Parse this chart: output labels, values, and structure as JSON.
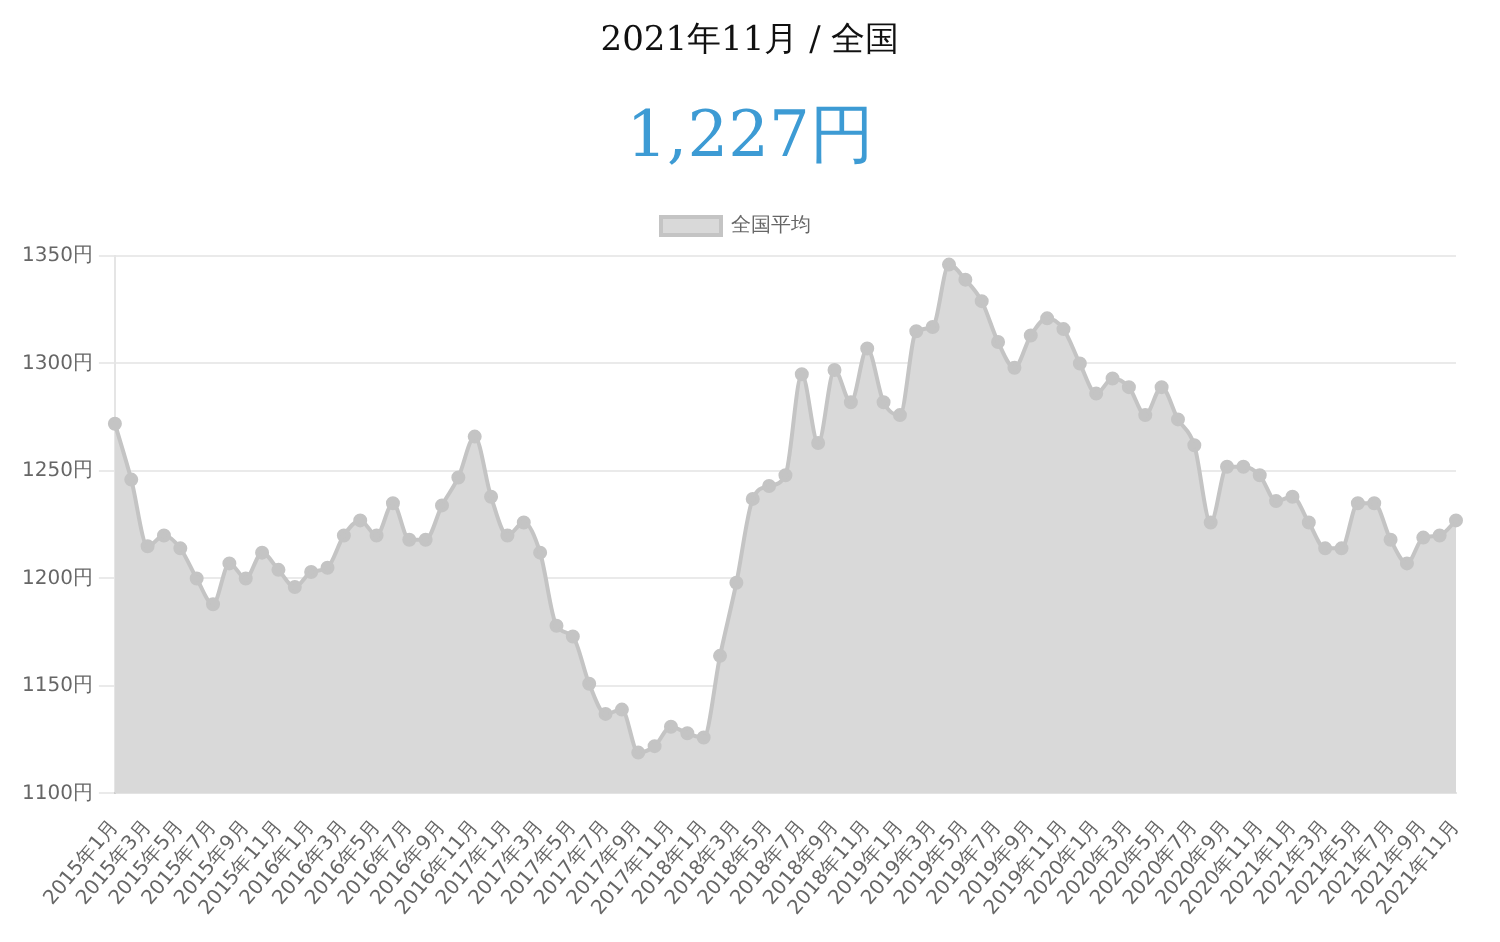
{
  "chart_data": {
    "type": "area",
    "title": "2021年11月 / 全国",
    "subtitle": "1,227円",
    "categories": [
      "2015年1月",
      null,
      "2015年3月",
      null,
      "2015年5月",
      null,
      "2015年7月",
      null,
      "2015年9月",
      null,
      "2015年11月",
      null,
      "2016年1月",
      null,
      "2016年3月",
      null,
      "2016年5月",
      null,
      "2016年7月",
      null,
      "2016年9月",
      null,
      "2016年11月",
      null,
      "2017年1月",
      null,
      "2017年3月",
      null,
      "2017年5月",
      null,
      "2017年7月",
      null,
      "2017年9月",
      null,
      "2017年11月",
      null,
      "2018年1月",
      null,
      "2018年3月",
      null,
      "2018年5月",
      null,
      "2018年7月",
      null,
      "2018年9月",
      null,
      "2018年11月",
      null,
      "2019年1月",
      null,
      "2019年3月",
      null,
      "2019年5月",
      null,
      "2019年7月",
      null,
      "2019年9月",
      null,
      "2019年11月",
      null,
      "2020年1月",
      null,
      "2020年3月",
      null,
      "2020年5月",
      null,
      "2020年7月",
      null,
      "2020年9月",
      null,
      "2020年11月",
      null,
      "2021年1月",
      null,
      "2021年3月",
      null,
      "2021年5月",
      null,
      "2021年7月",
      null,
      "2021年9月",
      null,
      "2021年11月"
    ],
    "series": [
      {
        "name": "全国平均",
        "color": "#d9d9d9",
        "values": [
          1272,
          1246,
          1215,
          1220,
          1214,
          1200,
          1188,
          1207,
          1200,
          1212,
          1204,
          1196,
          1203,
          1205,
          1220,
          1227,
          1220,
          1235,
          1218,
          1218,
          1234,
          1247,
          1266,
          1238,
          1220,
          1226,
          1212,
          1178,
          1173,
          1151,
          1137,
          1139,
          1119,
          1122,
          1131,
          1128,
          1126,
          1164,
          1198,
          1237,
          1243,
          1248,
          1295,
          1263,
          1297,
          1282,
          1307,
          1282,
          1276,
          1315,
          1317,
          1346,
          1339,
          1329,
          1310,
          1298,
          1313,
          1321,
          1316,
          1300,
          1286,
          1293,
          1289,
          1276,
          1289,
          1274,
          1262,
          1226,
          1252,
          1252,
          1248,
          1236,
          1238,
          1226,
          1214,
          1214,
          1235,
          1235,
          1218,
          1207,
          1219,
          1220,
          1227
        ]
      }
    ],
    "ylim": [
      1100,
      1350
    ],
    "yticks": [
      {
        "value": 1100,
        "label": "1100円"
      },
      {
        "value": 1150,
        "label": "1150円"
      },
      {
        "value": 1200,
        "label": "1200円"
      },
      {
        "value": 1250,
        "label": "1250円"
      },
      {
        "value": 1300,
        "label": "1300円"
      },
      {
        "value": 1350,
        "label": "1350円"
      }
    ],
    "grid": "y",
    "legend": "top",
    "marker": "circle"
  }
}
